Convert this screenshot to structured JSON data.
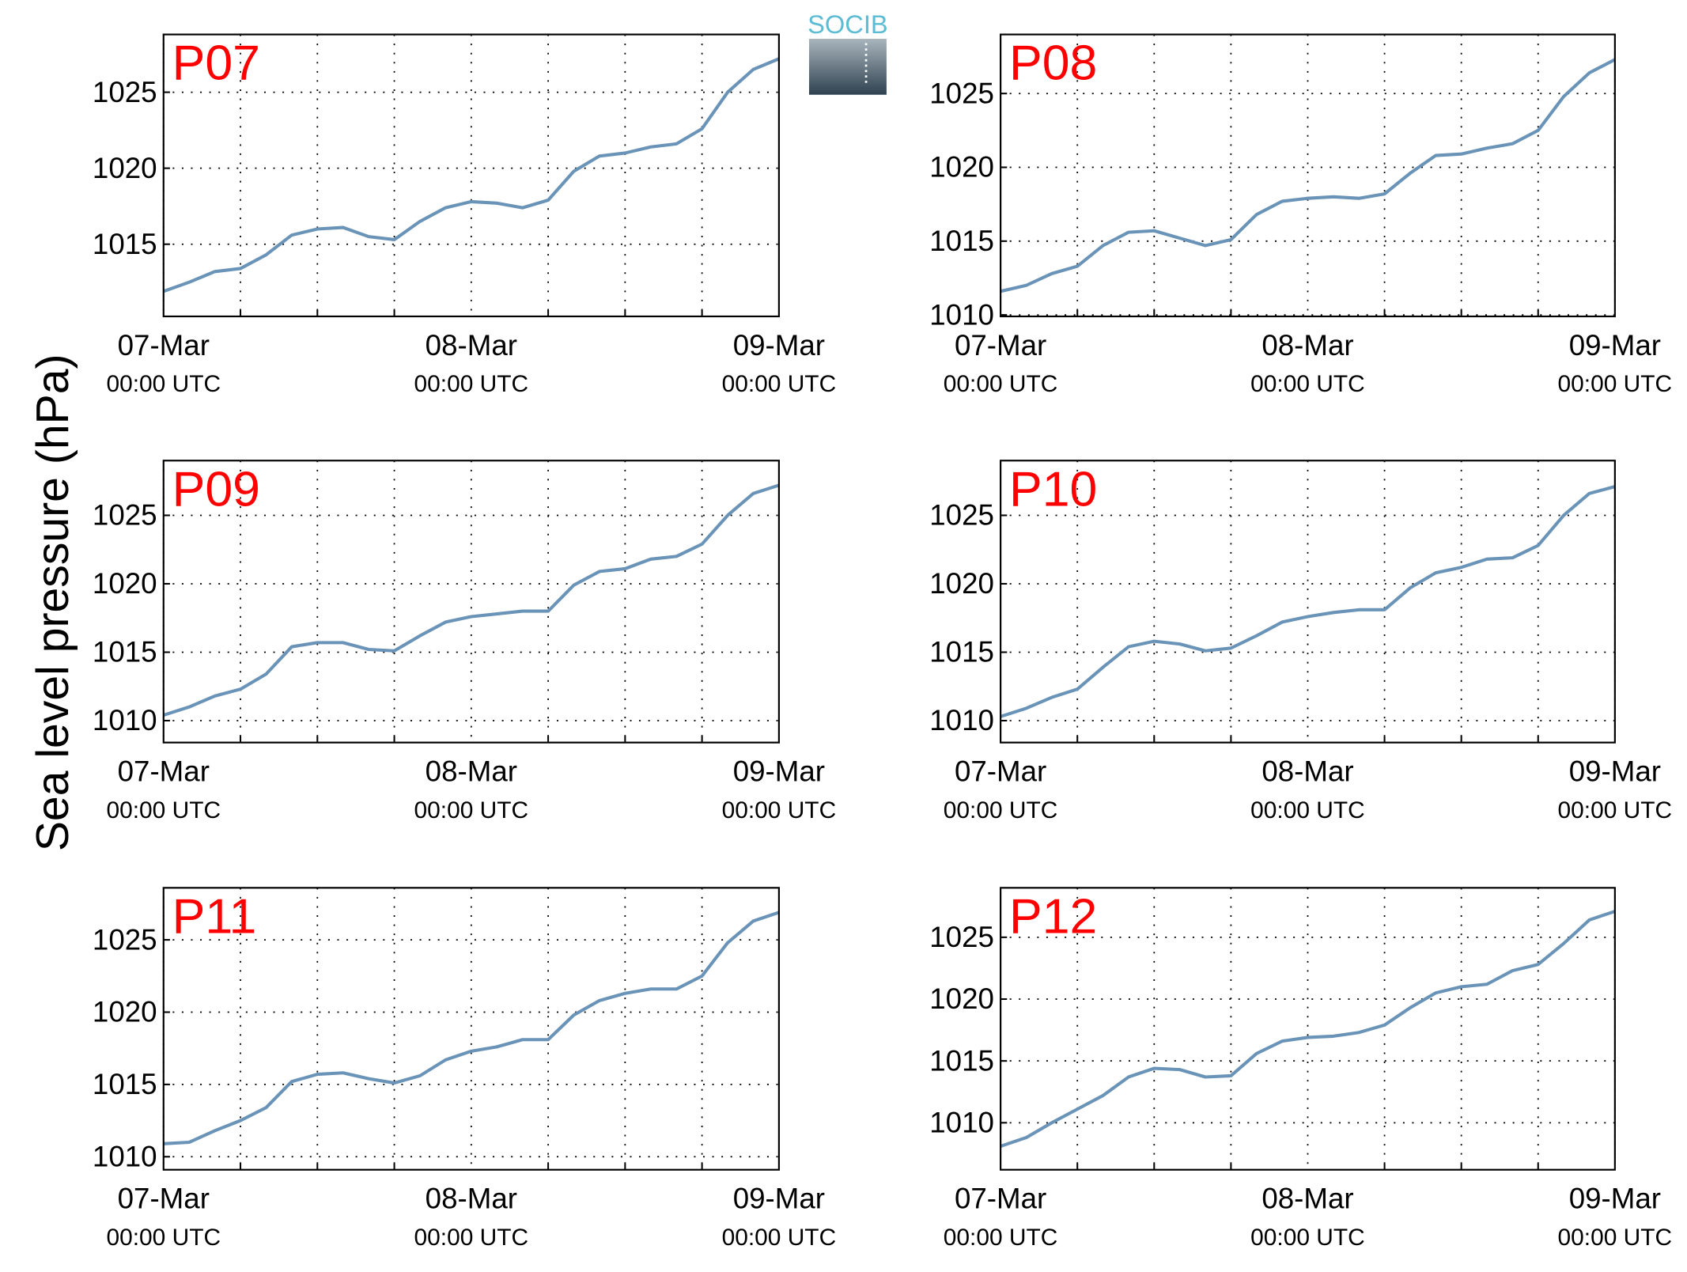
{
  "ylabel": "Sea level pressure (hPa)",
  "logo": "SOCIB",
  "chart_data": [
    {
      "type": "line",
      "title": "P07",
      "color": "#6a93b8",
      "grid": true,
      "x": [
        0,
        2,
        4,
        6,
        8,
        10,
        12,
        14,
        16,
        18,
        20,
        22,
        24,
        26,
        28,
        30,
        32,
        34,
        36,
        38,
        40,
        42,
        44,
        46,
        48
      ],
      "values": [
        1011.9,
        1012.5,
        1013.2,
        1013.4,
        1014.3,
        1015.6,
        1016.0,
        1016.1,
        1015.5,
        1015.3,
        1016.5,
        1017.4,
        1017.8,
        1017.7,
        1017.4,
        1017.9,
        1019.8,
        1020.8,
        1021.0,
        1021.4,
        1021.6,
        1022.6,
        1025.0,
        1026.5,
        1027.2
      ],
      "xlim": [
        0,
        48
      ],
      "xticks": [
        {
          "value": 0,
          "label": "07-Mar\n00:00 UTC"
        },
        {
          "value": 24,
          "label": "08-Mar\n00:00 UTC"
        },
        {
          "value": 48,
          "label": "09-Mar\n00:00 UTC"
        }
      ],
      "xminor": [
        6,
        12,
        18,
        30,
        36,
        42
      ],
      "ylim": [
        1010.25,
        1028.8
      ],
      "yticks": [
        1015,
        1020,
        1025
      ]
    },
    {
      "type": "line",
      "title": "P08",
      "color": "#6a93b8",
      "grid": true,
      "x": [
        0,
        2,
        4,
        6,
        8,
        10,
        12,
        14,
        16,
        18,
        20,
        22,
        24,
        26,
        28,
        30,
        32,
        34,
        36,
        38,
        40,
        42,
        44,
        46,
        48
      ],
      "values": [
        1011.6,
        1012.0,
        1012.8,
        1013.3,
        1014.7,
        1015.6,
        1015.7,
        1015.2,
        1014.7,
        1015.1,
        1016.8,
        1017.7,
        1017.9,
        1018.0,
        1017.9,
        1018.2,
        1019.6,
        1020.8,
        1020.9,
        1021.3,
        1021.6,
        1022.5,
        1024.8,
        1026.4,
        1027.3
      ],
      "xlim": [
        0,
        48
      ],
      "xticks": [
        {
          "value": 0,
          "label": "07-Mar\n00:00 UTC"
        },
        {
          "value": 24,
          "label": "08-Mar\n00:00 UTC"
        },
        {
          "value": 48,
          "label": "09-Mar\n00:00 UTC"
        }
      ],
      "xminor": [
        6,
        12,
        18,
        30,
        36,
        42
      ],
      "ylim": [
        1009.9,
        1029
      ],
      "yticks": [
        1010,
        1015,
        1020,
        1025
      ]
    },
    {
      "type": "line",
      "title": "P09",
      "color": "#6a93b8",
      "grid": true,
      "x": [
        0,
        2,
        4,
        6,
        8,
        10,
        12,
        14,
        16,
        18,
        20,
        22,
        24,
        26,
        28,
        30,
        32,
        34,
        36,
        38,
        40,
        42,
        44,
        46,
        48
      ],
      "values": [
        1010.4,
        1011.0,
        1011.8,
        1012.3,
        1013.4,
        1015.4,
        1015.7,
        1015.7,
        1015.2,
        1015.1,
        1016.2,
        1017.2,
        1017.6,
        1017.8,
        1018.0,
        1018.0,
        1019.9,
        1020.9,
        1021.1,
        1021.8,
        1022.0,
        1022.9,
        1025.0,
        1026.6,
        1027.2
      ],
      "xlim": [
        0,
        48
      ],
      "xticks": [
        {
          "value": 0,
          "label": "07-Mar\n00:00 UTC"
        },
        {
          "value": 24,
          "label": "08-Mar\n00:00 UTC"
        },
        {
          "value": 48,
          "label": "09-Mar\n00:00 UTC"
        }
      ],
      "xminor": [
        6,
        12,
        18,
        30,
        36,
        42
      ],
      "ylim": [
        1008.4,
        1029
      ],
      "yticks": [
        1010,
        1015,
        1020,
        1025
      ]
    },
    {
      "type": "line",
      "title": "P10",
      "color": "#6a93b8",
      "grid": true,
      "x": [
        0,
        2,
        4,
        6,
        8,
        10,
        12,
        14,
        16,
        18,
        20,
        22,
        24,
        26,
        28,
        30,
        32,
        34,
        36,
        38,
        40,
        42,
        44,
        46,
        48
      ],
      "values": [
        1010.3,
        1010.9,
        1011.7,
        1012.3,
        1013.9,
        1015.4,
        1015.8,
        1015.6,
        1015.1,
        1015.3,
        1016.2,
        1017.2,
        1017.6,
        1017.9,
        1018.1,
        1018.1,
        1019.7,
        1020.8,
        1021.2,
        1021.8,
        1021.9,
        1022.8,
        1025.0,
        1026.6,
        1027.1
      ],
      "xlim": [
        0,
        48
      ],
      "xticks": [
        {
          "value": 0,
          "label": "07-Mar\n00:00 UTC"
        },
        {
          "value": 24,
          "label": "08-Mar\n00:00 UTC"
        },
        {
          "value": 48,
          "label": "09-Mar\n00:00 UTC"
        }
      ],
      "xminor": [
        6,
        12,
        18,
        30,
        36,
        42
      ],
      "ylim": [
        1008.4,
        1029
      ],
      "yticks": [
        1010,
        1015,
        1020,
        1025
      ]
    },
    {
      "type": "line",
      "title": "P11",
      "color": "#6a93b8",
      "grid": true,
      "x": [
        0,
        2,
        4,
        6,
        8,
        10,
        12,
        14,
        16,
        18,
        20,
        22,
        24,
        26,
        28,
        30,
        32,
        34,
        36,
        38,
        40,
        42,
        44,
        46,
        48
      ],
      "values": [
        1010.9,
        1011.0,
        1011.8,
        1012.5,
        1013.4,
        1015.2,
        1015.7,
        1015.8,
        1015.4,
        1015.1,
        1015.6,
        1016.7,
        1017.3,
        1017.6,
        1018.1,
        1018.1,
        1019.8,
        1020.8,
        1021.3,
        1021.6,
        1021.6,
        1022.5,
        1024.8,
        1026.3,
        1026.9
      ],
      "xlim": [
        0,
        48
      ],
      "xticks": [
        {
          "value": 0,
          "label": "07-Mar\n00:00 UTC"
        },
        {
          "value": 24,
          "label": "08-Mar\n00:00 UTC"
        },
        {
          "value": 48,
          "label": "09-Mar\n00:00 UTC"
        }
      ],
      "xminor": [
        6,
        12,
        18,
        30,
        36,
        42
      ],
      "ylim": [
        1009.1,
        1028.6
      ],
      "yticks": [
        1010,
        1015,
        1020,
        1025
      ]
    },
    {
      "type": "line",
      "title": "P12",
      "color": "#6a93b8",
      "grid": true,
      "x": [
        0,
        2,
        4,
        6,
        8,
        10,
        12,
        14,
        16,
        18,
        20,
        22,
        24,
        26,
        28,
        30,
        32,
        34,
        36,
        38,
        40,
        42,
        44,
        46,
        48
      ],
      "values": [
        1008.1,
        1008.8,
        1010.0,
        1011.1,
        1012.2,
        1013.7,
        1014.4,
        1014.3,
        1013.7,
        1013.8,
        1015.6,
        1016.6,
        1016.9,
        1017.0,
        1017.3,
        1017.9,
        1019.3,
        1020.5,
        1021.0,
        1021.2,
        1022.3,
        1022.8,
        1024.5,
        1026.4,
        1027.1
      ],
      "xlim": [
        0,
        48
      ],
      "xticks": [
        {
          "value": 0,
          "label": "07-Mar\n00:00 UTC"
        },
        {
          "value": 24,
          "label": "08-Mar\n00:00 UTC"
        },
        {
          "value": 48,
          "label": "09-Mar\n00:00 UTC"
        }
      ],
      "xminor": [
        6,
        12,
        18,
        30,
        36,
        42
      ],
      "ylim": [
        1006.2,
        1029
      ],
      "yticks": [
        1010,
        1015,
        1020,
        1025
      ]
    }
  ]
}
